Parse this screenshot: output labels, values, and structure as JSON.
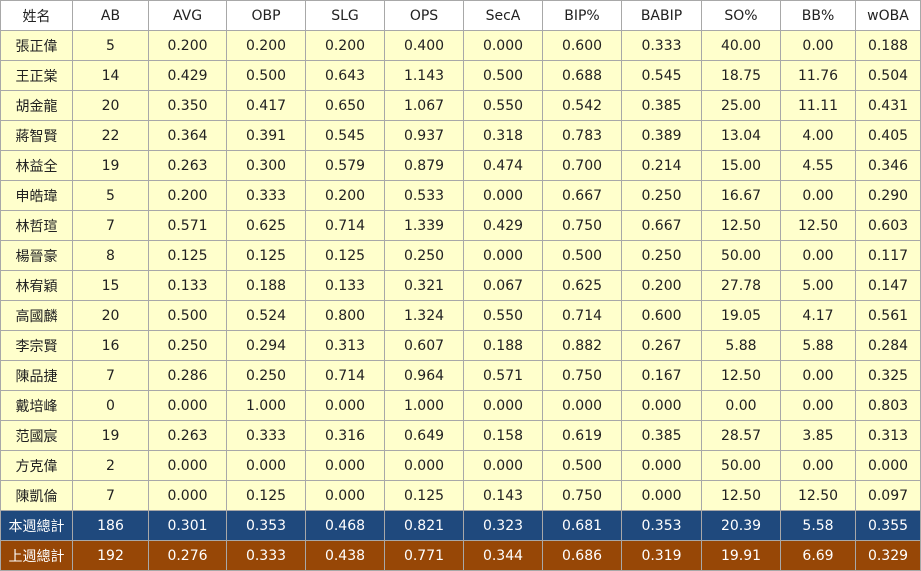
{
  "colors": {
    "row_bg": "#ffffcc",
    "header_bg": "#ffffff",
    "this_week_total_bg": "#1f497d",
    "last_week_total_bg": "#974706",
    "border": "#a8a8a8"
  },
  "table": {
    "headers": [
      "姓名",
      "AB",
      "AVG",
      "OBP",
      "SLG",
      "OPS",
      "SecA",
      "BIP%",
      "BABIP",
      "SO%",
      "BB%",
      "wOBA"
    ],
    "rows": [
      [
        "張正偉",
        "5",
        "0.200",
        "0.200",
        "0.200",
        "0.400",
        "0.000",
        "0.600",
        "0.333",
        "40.00",
        "0.00",
        "0.188"
      ],
      [
        "王正棠",
        "14",
        "0.429",
        "0.500",
        "0.643",
        "1.143",
        "0.500",
        "0.688",
        "0.545",
        "18.75",
        "11.76",
        "0.504"
      ],
      [
        "胡金龍",
        "20",
        "0.350",
        "0.417",
        "0.650",
        "1.067",
        "0.550",
        "0.542",
        "0.385",
        "25.00",
        "11.11",
        "0.431"
      ],
      [
        "蔣智賢",
        "22",
        "0.364",
        "0.391",
        "0.545",
        "0.937",
        "0.318",
        "0.783",
        "0.389",
        "13.04",
        "4.00",
        "0.405"
      ],
      [
        "林益全",
        "19",
        "0.263",
        "0.300",
        "0.579",
        "0.879",
        "0.474",
        "0.700",
        "0.214",
        "15.00",
        "4.55",
        "0.346"
      ],
      [
        "申皓瑋",
        "5",
        "0.200",
        "0.333",
        "0.200",
        "0.533",
        "0.000",
        "0.667",
        "0.250",
        "16.67",
        "0.00",
        "0.290"
      ],
      [
        "林哲瑄",
        "7",
        "0.571",
        "0.625",
        "0.714",
        "1.339",
        "0.429",
        "0.750",
        "0.667",
        "12.50",
        "12.50",
        "0.603"
      ],
      [
        "楊晉豪",
        "8",
        "0.125",
        "0.125",
        "0.125",
        "0.250",
        "0.000",
        "0.500",
        "0.250",
        "50.00",
        "0.00",
        "0.117"
      ],
      [
        "林宥穎",
        "15",
        "0.133",
        "0.188",
        "0.133",
        "0.321",
        "0.067",
        "0.625",
        "0.200",
        "27.78",
        "5.00",
        "0.147"
      ],
      [
        "高國麟",
        "20",
        "0.500",
        "0.524",
        "0.800",
        "1.324",
        "0.550",
        "0.714",
        "0.600",
        "19.05",
        "4.17",
        "0.561"
      ],
      [
        "李宗賢",
        "16",
        "0.250",
        "0.294",
        "0.313",
        "0.607",
        "0.188",
        "0.882",
        "0.267",
        "5.88",
        "5.88",
        "0.284"
      ],
      [
        "陳品捷",
        "7",
        "0.286",
        "0.250",
        "0.714",
        "0.964",
        "0.571",
        "0.750",
        "0.167",
        "12.50",
        "0.00",
        "0.325"
      ],
      [
        "戴培峰",
        "0",
        "0.000",
        "1.000",
        "0.000",
        "1.000",
        "0.000",
        "0.000",
        "0.000",
        "0.00",
        "0.00",
        "0.803"
      ],
      [
        "范國宸",
        "19",
        "0.263",
        "0.333",
        "0.316",
        "0.649",
        "0.158",
        "0.619",
        "0.385",
        "28.57",
        "3.85",
        "0.313"
      ],
      [
        "方克偉",
        "2",
        "0.000",
        "0.000",
        "0.000",
        "0.000",
        "0.000",
        "0.500",
        "0.000",
        "50.00",
        "0.00",
        "0.000"
      ],
      [
        "陳凱倫",
        "7",
        "0.000",
        "0.125",
        "0.000",
        "0.125",
        "0.143",
        "0.750",
        "0.000",
        "12.50",
        "12.50",
        "0.097"
      ]
    ],
    "totals": [
      {
        "key": "this-week",
        "bg": "#1f497d",
        "cells": [
          "本週總計",
          "186",
          "0.301",
          "0.353",
          "0.468",
          "0.821",
          "0.323",
          "0.681",
          "0.353",
          "20.39",
          "5.58",
          "0.355"
        ]
      },
      {
        "key": "last-week",
        "bg": "#974706",
        "cells": [
          "上週總計",
          "192",
          "0.276",
          "0.333",
          "0.438",
          "0.771",
          "0.344",
          "0.686",
          "0.319",
          "19.91",
          "6.69",
          "0.329"
        ]
      }
    ]
  }
}
